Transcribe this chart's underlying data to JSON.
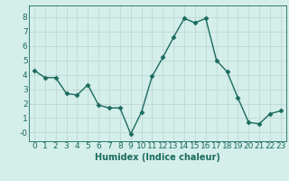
{
  "x": [
    0,
    1,
    2,
    3,
    4,
    5,
    6,
    7,
    8,
    9,
    10,
    11,
    12,
    13,
    14,
    15,
    16,
    17,
    18,
    19,
    20,
    21,
    22,
    23
  ],
  "y": [
    4.3,
    3.8,
    3.8,
    2.7,
    2.6,
    3.3,
    1.9,
    1.7,
    1.7,
    -0.1,
    1.4,
    3.9,
    5.2,
    6.6,
    7.9,
    7.6,
    7.9,
    5.0,
    4.2,
    2.4,
    0.7,
    0.6,
    1.3,
    1.5
  ],
  "line_color": "#1a6b5e",
  "marker": "D",
  "markersize": 2.5,
  "linewidth": 1.0,
  "bg_color": "#d4eeea",
  "grid_color": "#c0d8d4",
  "xlabel": "Humidex (Indice chaleur)",
  "xlabel_fontsize": 7,
  "tick_fontsize": 6.5,
  "ylim": [
    -0.6,
    8.8
  ],
  "xlim": [
    -0.5,
    23.5
  ],
  "yticks": [
    0,
    1,
    2,
    3,
    4,
    5,
    6,
    7,
    8
  ],
  "ytick_labels": [
    "-0",
    "1",
    "2",
    "3",
    "4",
    "5",
    "6",
    "7",
    "8"
  ],
  "xticks": [
    0,
    1,
    2,
    3,
    4,
    5,
    6,
    7,
    8,
    9,
    10,
    11,
    12,
    13,
    14,
    15,
    16,
    17,
    18,
    19,
    20,
    21,
    22,
    23
  ]
}
